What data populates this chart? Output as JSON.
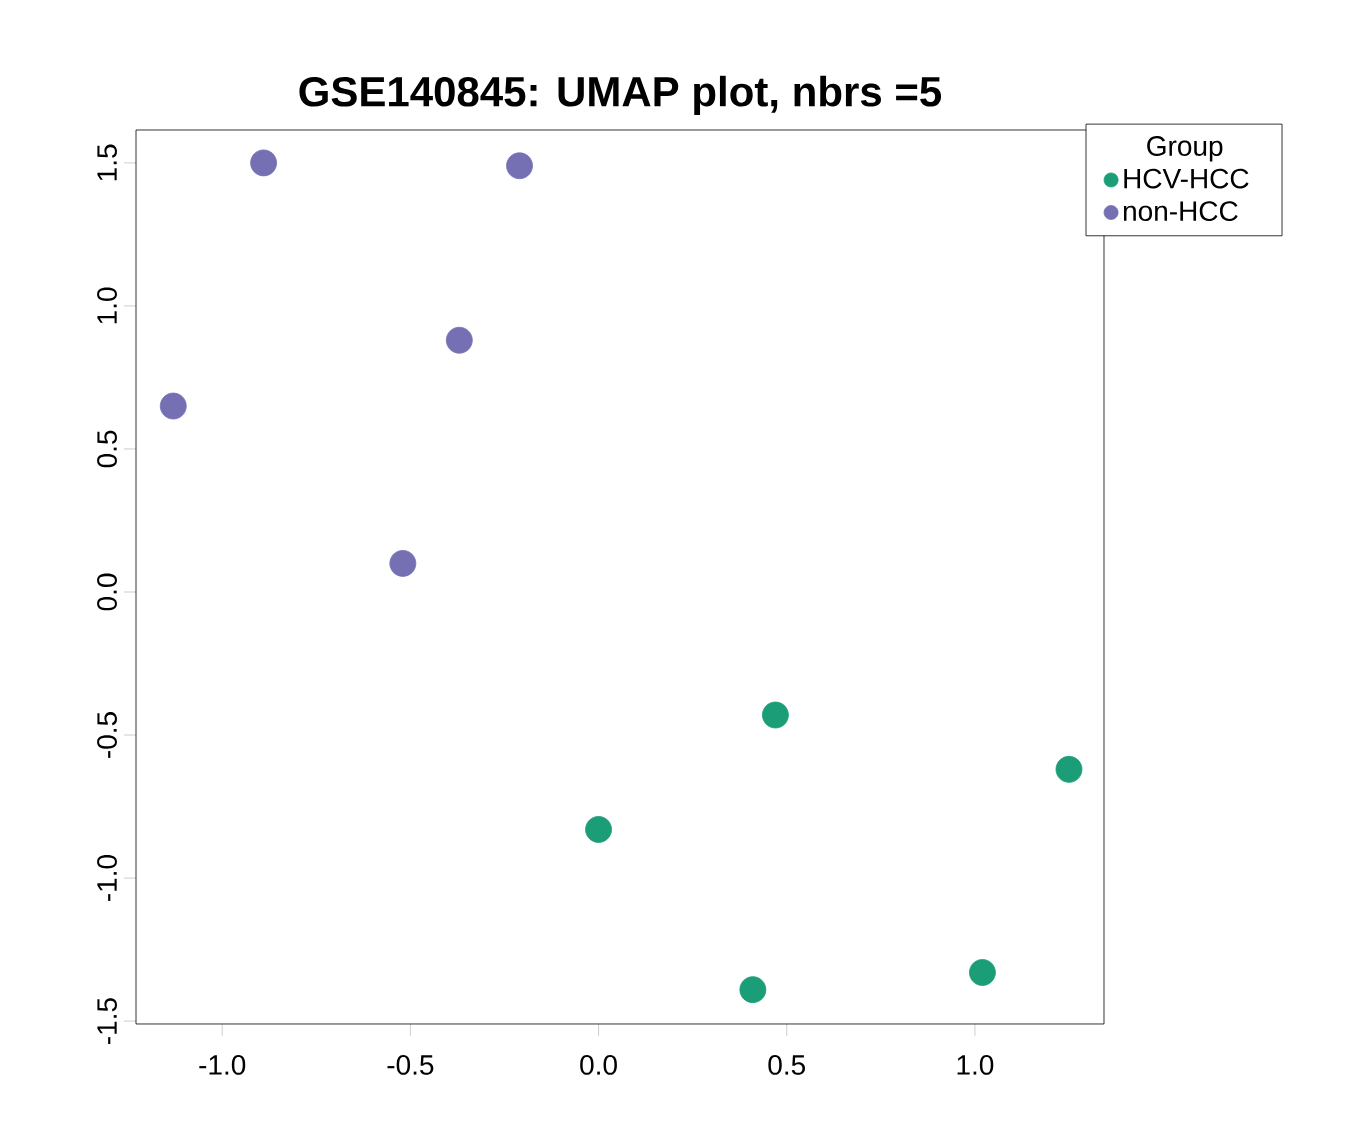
{
  "chart_data": {
    "type": "scatter",
    "title": "GSE140845: UMAP plot, nbrs =5",
    "legend_title": "Group",
    "legend": "top right",
    "marker": "circle",
    "grid": false,
    "xlim": [
      -1.229,
      1.343
    ],
    "ylim": [
      -1.51,
      1.615
    ],
    "xticks": [
      {
        "value": -1,
        "label": "-1.0"
      },
      {
        "value": -0.5,
        "label": "-0.5"
      },
      {
        "value": 0,
        "label": "0.0"
      },
      {
        "value": 0.5,
        "label": "0.5"
      },
      {
        "value": 1,
        "label": "1.0"
      }
    ],
    "yticks": [
      {
        "value": -1.5,
        "label": "-1.5"
      },
      {
        "value": -1,
        "label": "-1.0"
      },
      {
        "value": -0.5,
        "label": "-0.5"
      },
      {
        "value": 0,
        "label": "0.0"
      },
      {
        "value": 0.5,
        "label": "0.5"
      },
      {
        "value": 1,
        "label": "1.0"
      },
      {
        "value": 1.5,
        "label": "1.5"
      }
    ],
    "series": [
      {
        "name": "HCV-HCC",
        "color": "#1b9e77",
        "x": [
          0.47,
          1.25,
          0.0,
          0.41,
          1.02
        ],
        "values": [
          -0.43,
          -0.62,
          -0.83,
          -1.39,
          -1.33
        ]
      },
      {
        "name": "non-HCC",
        "color": "#7570b3",
        "x": [
          -0.89,
          -0.21,
          -0.37,
          -1.13,
          -0.52
        ],
        "values": [
          1.5,
          1.49,
          0.88,
          0.65,
          0.1
        ]
      }
    ]
  }
}
